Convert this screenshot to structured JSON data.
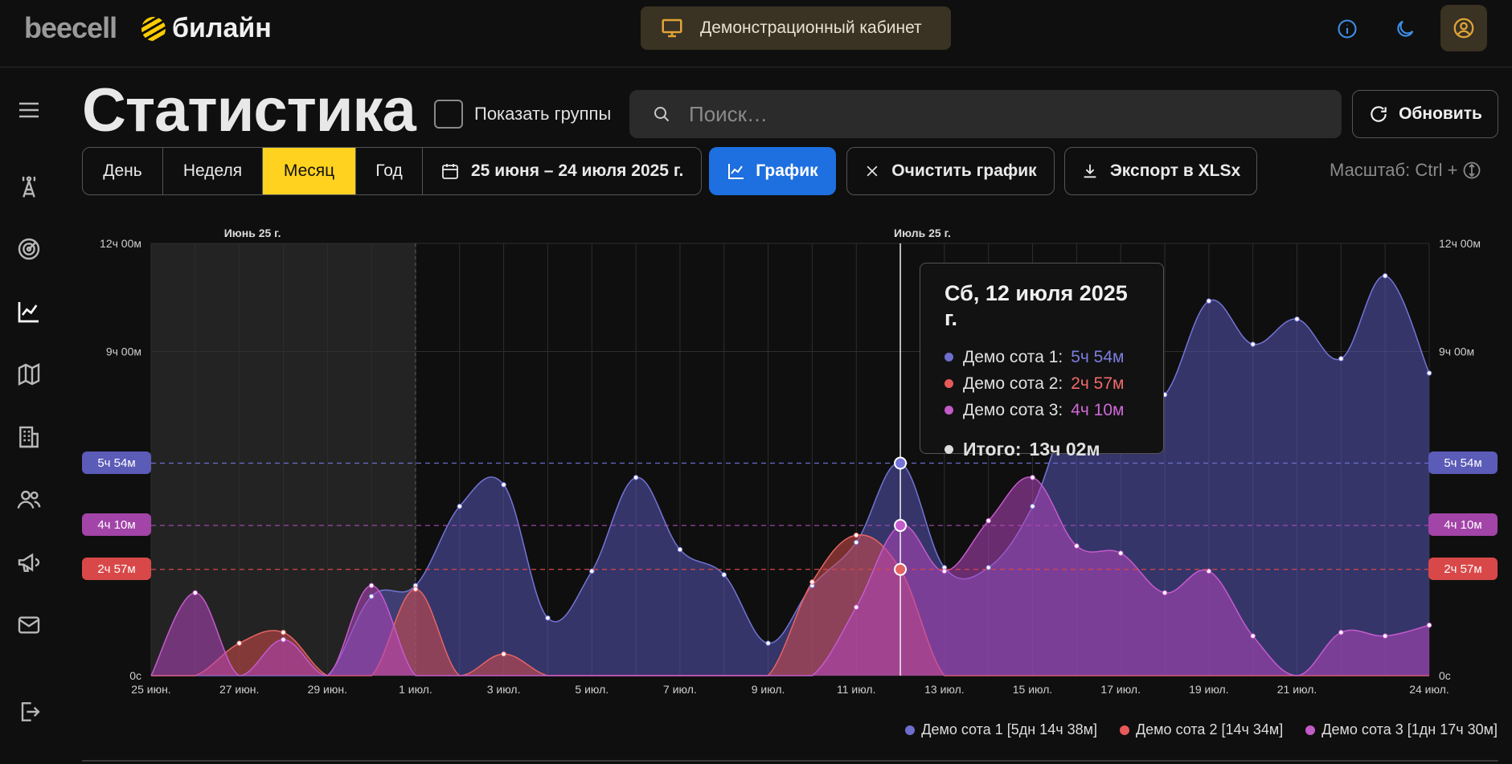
{
  "header": {
    "brand": "beecell",
    "operator": "билайн",
    "demo_label": "Демонстрационный кабинет"
  },
  "page": {
    "title": "Статистика",
    "show_groups_label": "Показать группы",
    "search_placeholder": "Поиск…",
    "refresh_label": "Обновить"
  },
  "toolbar": {
    "periods": [
      "День",
      "Неделя",
      "Месяц",
      "Год"
    ],
    "active_period": "Месяц",
    "date_range": "25 июня – 24 июля 2025 г.",
    "graph_label": "График",
    "clear_label": "Очистить график",
    "export_label": "Экспорт в XLSx",
    "zoom_hint": "Масштаб: Ctrl +"
  },
  "tooltip": {
    "title": "Сб, 12 июля 2025 г.",
    "rows": [
      {
        "label": "Демо сота 1:",
        "value": "5ч 54м",
        "color": "#6e6ecf"
      },
      {
        "label": "Демо сота 2:",
        "value": "2ч 57м",
        "color": "#e85a5a"
      },
      {
        "label": "Демо сота 3:",
        "value": "4ч 10м",
        "color": "#c25bc8"
      }
    ],
    "total_label": "Итого:",
    "total_value": "13ч 02м"
  },
  "badges": {
    "s1": "5ч 54м",
    "s2": "2ч 57м",
    "s3": "4ч 10м"
  },
  "legend": [
    {
      "label": "Демо сота 1 [5дн 14ч 38м]",
      "color": "#6e6ecf"
    },
    {
      "label": "Демо сота 2 [14ч 34м]",
      "color": "#e85a5a"
    },
    {
      "label": "Демо сота 3 [1дн 17ч 30м]",
      "color": "#c25bc8"
    }
  ],
  "chart_data": {
    "type": "area",
    "y_unit": "hours",
    "ylim": [
      0,
      12
    ],
    "y_ticks": [
      "0с",
      "9ч 00м",
      "12ч 00м"
    ],
    "y_tick_values": [
      0,
      9,
      12
    ],
    "month_labels": [
      "Июнь 25 г.",
      "Июль 25 г."
    ],
    "x": [
      "25 июн.",
      "26 июн.",
      "27 июн.",
      "28 июн.",
      "29 июн.",
      "30 июн.",
      "1 июл.",
      "2 июл.",
      "3 июл.",
      "4 июл.",
      "5 июл.",
      "6 июл.",
      "7 июл.",
      "8 июл.",
      "9 июл.",
      "10 июл.",
      "11 июл.",
      "12 июл.",
      "13 июл.",
      "14 июл.",
      "15 июл.",
      "16 июл.",
      "17 июл.",
      "18 июл.",
      "19 июл.",
      "20 июл.",
      "21 июл.",
      "22 июл.",
      "23 июл.",
      "24 июл."
    ],
    "x_tick_labels": [
      "25 июн.",
      "27 июн.",
      "29 июн.",
      "1 июл.",
      "3 июл.",
      "5 июл.",
      "7 июл.",
      "9 июл.",
      "11 июл.",
      "13 июл.",
      "15 июл.",
      "17 июл.",
      "19 июл.",
      "21 июл.",
      "24 июл."
    ],
    "x_tick_indices": [
      0,
      2,
      4,
      6,
      8,
      10,
      12,
      14,
      16,
      18,
      20,
      22,
      24,
      26,
      29
    ],
    "highlight_index": 17,
    "series": [
      {
        "name": "Демо сота 1",
        "color": "#6e6ecf",
        "values": [
          0,
          0,
          0,
          0,
          0,
          2.2,
          2.5,
          4.7,
          5.3,
          1.6,
          2.9,
          5.5,
          3.5,
          2.8,
          0.9,
          2.5,
          3.7,
          5.9,
          3.0,
          3.0,
          4.7,
          7.8,
          7.8,
          7.8,
          10.4,
          9.2,
          9.9,
          8.8,
          11.1,
          8.4
        ]
      },
      {
        "name": "Демо сота 2",
        "color": "#e85a5a",
        "values": [
          0,
          0,
          0.9,
          1.2,
          0,
          0,
          2.4,
          0,
          0.6,
          0,
          0,
          0,
          0,
          0,
          0,
          2.6,
          3.9,
          2.95,
          0,
          0,
          0,
          0,
          0,
          0,
          0,
          0,
          0,
          0,
          0,
          0
        ]
      },
      {
        "name": "Демо сота 3",
        "color": "#c25bc8",
        "values": [
          0,
          2.3,
          0,
          1.0,
          0,
          2.5,
          0,
          0,
          0,
          0,
          0,
          0,
          0,
          0,
          0,
          0,
          1.9,
          4.17,
          2.9,
          4.3,
          5.5,
          3.6,
          3.4,
          2.3,
          2.9,
          1.1,
          0,
          1.2,
          1.1,
          1.4
        ]
      }
    ]
  }
}
